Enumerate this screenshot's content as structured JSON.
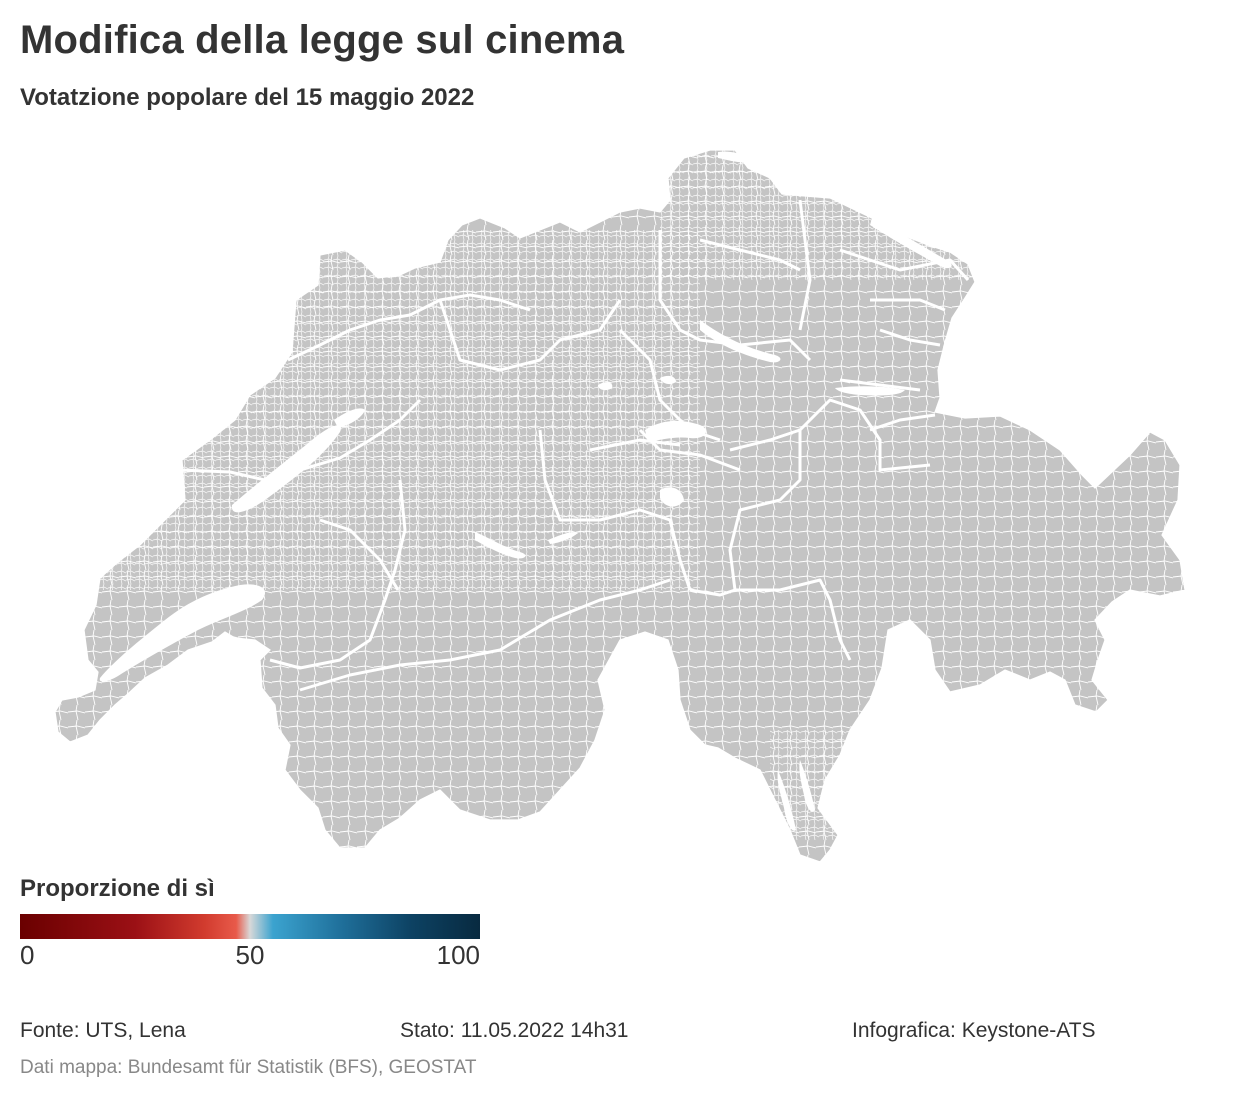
{
  "title": "Modifica della legge sul cinema",
  "subtitle": "Votatzione popolare del 15 maggio 2022",
  "map": {
    "fill_color": "#c4c4c4",
    "border_color": "#ffffff"
  },
  "legend": {
    "title": "Proporzione di sì",
    "tick_labels": [
      "0",
      "50",
      "100"
    ],
    "range": [
      0,
      100
    ],
    "gradient_stops": [
      {
        "value": 0,
        "color": "#6a0000"
      },
      {
        "value": 25,
        "color": "#9b1015"
      },
      {
        "value": 40,
        "color": "#d13b2e"
      },
      {
        "value": 47,
        "color": "#e85a4a"
      },
      {
        "value": 50,
        "color": "#d8d8d8"
      },
      {
        "value": 55,
        "color": "#3ba3cf"
      },
      {
        "value": 70,
        "color": "#1f6f9a"
      },
      {
        "value": 85,
        "color": "#0d4263"
      },
      {
        "value": 100,
        "color": "#082a40"
      }
    ]
  },
  "footer": {
    "source": "Fonte: UTS, Lena",
    "status": "Stato: 11.05.2022 14h31",
    "credit": "Infografica: Keystone-ATS",
    "map_data": "Dati mappa: Bundesamt für Statistik (BFS), GEOSTAT"
  }
}
